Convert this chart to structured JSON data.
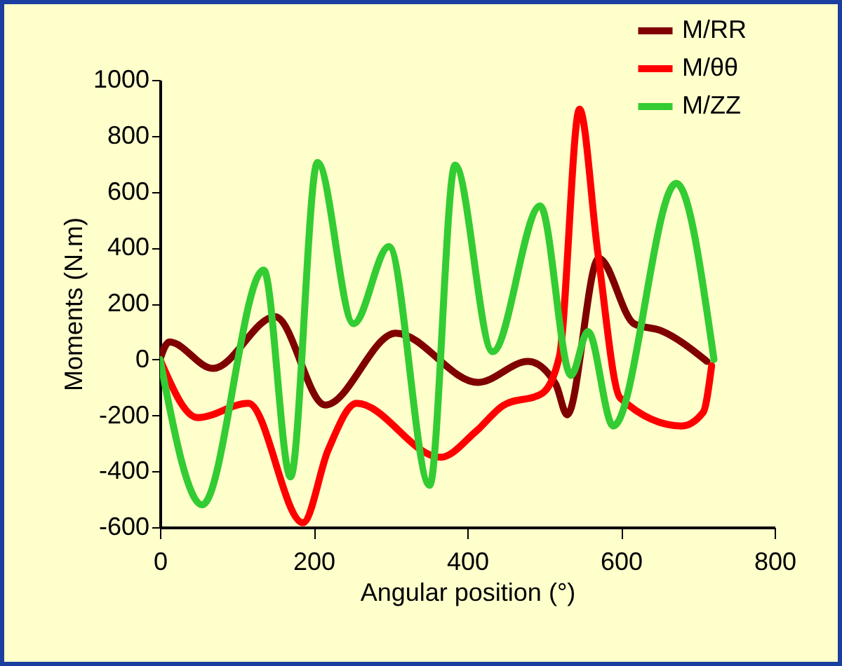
{
  "chart_data": {
    "type": "line",
    "xlabel": "Angular position (°)",
    "ylabel": "Moments (N.m)",
    "xlim": [
      0,
      800
    ],
    "xticks": [
      0,
      200,
      400,
      600,
      800
    ],
    "ylim": [
      -600,
      1000
    ],
    "yticks": [
      -600,
      -400,
      -200,
      0,
      200,
      400,
      600,
      800,
      1000
    ],
    "grid": false,
    "legend": "top right",
    "marker": "none",
    "line_style": "solid",
    "series": [
      {
        "name": "M/RR",
        "color": "#800000",
        "x": [
          0,
          12,
          69,
          150,
          215,
          307,
          414,
          479,
          515,
          530,
          571,
          617,
          652,
          712
        ],
        "values": [
          0,
          63,
          -32,
          153,
          -163,
          94,
          -82,
          -7,
          -88,
          -198,
          362,
          128,
          103,
          -7
        ]
      },
      {
        "name": "M/θθ",
        "color": "#ff0000",
        "x": [
          0,
          49,
          115,
          186,
          219,
          256,
          365,
          411,
          447,
          497,
          520,
          546,
          570,
          599,
          679,
          707,
          718
        ],
        "values": [
          0,
          -208,
          -157,
          -584,
          -323,
          -157,
          -350,
          -258,
          -164,
          -122,
          13,
          895,
          379,
          -138,
          -238,
          -189,
          -22
        ]
      },
      {
        "name": "M/ZZ",
        "color": "#33cc33",
        "x": [
          0,
          55,
          135,
          170,
          205,
          252,
          298,
          351,
          384,
          433,
          495,
          535,
          557,
          590,
          672,
          721
        ],
        "values": [
          0,
          -520,
          320,
          -420,
          705,
          128,
          404,
          -450,
          695,
          28,
          549,
          -57,
          100,
          -238,
          630,
          0
        ]
      }
    ]
  }
}
